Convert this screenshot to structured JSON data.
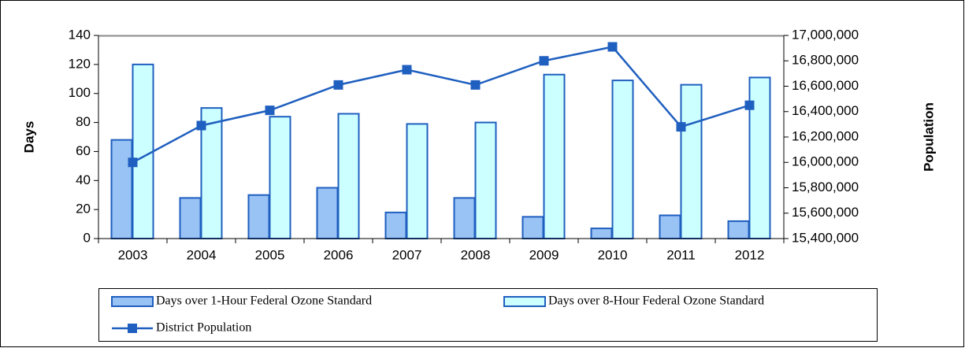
{
  "chart_data": {
    "type": "bar_line",
    "y_label": "Days",
    "y2_label": "Population",
    "categories": [
      "2003",
      "2004",
      "2005",
      "2006",
      "2007",
      "2008",
      "2009",
      "2010",
      "2011",
      "2012"
    ],
    "series": [
      {
        "name": "Days over 1-Hour Federal Ozone Standard",
        "type": "bar",
        "color": "#99c2f5",
        "values": [
          68,
          28,
          30,
          35,
          18,
          28,
          15,
          7,
          16,
          12
        ]
      },
      {
        "name": "Days over 8-Hour Federal Ozone Standard",
        "type": "bar",
        "color": "#ccffff",
        "values": [
          120,
          90,
          84,
          86,
          79,
          80,
          113,
          109,
          106,
          111
        ]
      },
      {
        "name": "District Population",
        "type": "line",
        "axis": "y2",
        "color": "#1f5fbf",
        "values": [
          16000000,
          16290000,
          16410000,
          16610000,
          16730000,
          16610000,
          16800000,
          16910000,
          16280000,
          16450000
        ]
      }
    ],
    "ylim": [
      0,
      140
    ],
    "yticks": [
      0,
      20,
      40,
      60,
      80,
      100,
      120,
      140
    ],
    "y2lim": [
      15400000,
      17000000
    ],
    "y2ticks": [
      {
        "value": 15400000,
        "label": "15,400,000"
      },
      {
        "value": 15600000,
        "label": "15,600,000"
      },
      {
        "value": 15800000,
        "label": "15,800,000"
      },
      {
        "value": 16000000,
        "label": "16,000,000"
      },
      {
        "value": 16200000,
        "label": "16,200,000"
      },
      {
        "value": 16400000,
        "label": "16,400,000"
      },
      {
        "value": 16600000,
        "label": "16,600,000"
      },
      {
        "value": 16800000,
        "label": "16,800,000"
      },
      {
        "value": 17000000,
        "label": "17,000,000"
      }
    ],
    "legend": "bottom",
    "edge_color": "#1f5fbf"
  }
}
